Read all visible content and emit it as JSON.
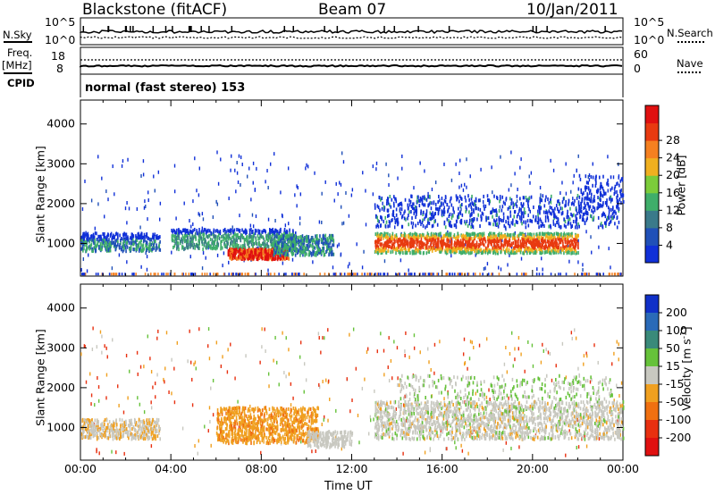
{
  "header": {
    "station": "Blackstone (fitACF)",
    "beam": "Beam 07",
    "date": "10/Jan/2011"
  },
  "top_panel": {
    "left_label": "N.Sky",
    "left_ticks": [
      "10^5",
      "10^0"
    ],
    "right_label": "N.Search",
    "right_ticks": [
      "10^5",
      "10^0"
    ]
  },
  "freq_panel": {
    "left_label_1": "Freq.",
    "left_label_2": "[MHz]",
    "left_ticks": [
      "18",
      "8"
    ],
    "right_label": "Nave",
    "right_ticks": [
      "60",
      "0"
    ],
    "cpid_label": "CPID",
    "cpid_text": "normal (fast stereo) 153"
  },
  "chart_data": [
    {
      "type": "heatmap",
      "title": "Power",
      "ylabel": "Slant Range [km]",
      "y_ticks": [
        "1000",
        "2000",
        "3000",
        "4000"
      ],
      "ylim": [
        180,
        4600
      ],
      "xlim": [
        0,
        24
      ],
      "colorbar_label": "Power [dB]",
      "colorbar_ticks": [
        "4",
        "8",
        "12",
        "16",
        "20",
        "24",
        "28"
      ],
      "colorbar_colors": [
        "#1030d8",
        "#2050b8",
        "#3a7a8a",
        "#3fae6a",
        "#7ccc3a",
        "#f0b020",
        "#f58020",
        "#e83a10",
        "#e01010"
      ],
      "features": [
        {
          "x": [
            0.0,
            3.5
          ],
          "y": [
            800,
            1200
          ],
          "level": "low"
        },
        {
          "x": [
            4.0,
            11.0
          ],
          "y": [
            700,
            1350
          ],
          "level": "mid"
        },
        {
          "x": [
            6.5,
            9.0
          ],
          "y": [
            600,
            900
          ],
          "level": "high"
        },
        {
          "x": [
            13.0,
            22.0
          ],
          "y": [
            700,
            1300
          ],
          "level": "high"
        },
        {
          "x": [
            13.0,
            24.0
          ],
          "y": [
            1400,
            2200
          ],
          "level": "low"
        }
      ]
    },
    {
      "type": "heatmap",
      "title": "Velocity",
      "ylabel": "Slant Range [km]",
      "xlabel": "Time UT",
      "x_ticks": [
        "00:00",
        "04:00",
        "08:00",
        "12:00",
        "16:00",
        "20:00",
        "00:00"
      ],
      "y_ticks": [
        "1000",
        "2000",
        "3000",
        "4000"
      ],
      "ylim": [
        180,
        4600
      ],
      "xlim": [
        0,
        24
      ],
      "colorbar_label": "Velocity [m s^-1]",
      "colorbar_ticks": [
        "200",
        "100",
        "50",
        "15",
        "-15",
        "-50",
        "-100",
        "-200"
      ],
      "colorbar_colors": [
        "#1030c8",
        "#2a6ab8",
        "#3a8a7a",
        "#66c23a",
        "#c8c8c0",
        "#f0a020",
        "#f07010",
        "#e83010",
        "#e01010"
      ],
      "features": [
        {
          "x": [
            0.0,
            3.5
          ],
          "y": [
            700,
            1200
          ],
          "velocity": -50
        },
        {
          "x": [
            6.0,
            10.5
          ],
          "y": [
            600,
            1500
          ],
          "velocity": -50
        },
        {
          "x": [
            13.0,
            24.0
          ],
          "y": [
            700,
            1700
          ],
          "velocity": 0
        }
      ]
    }
  ]
}
